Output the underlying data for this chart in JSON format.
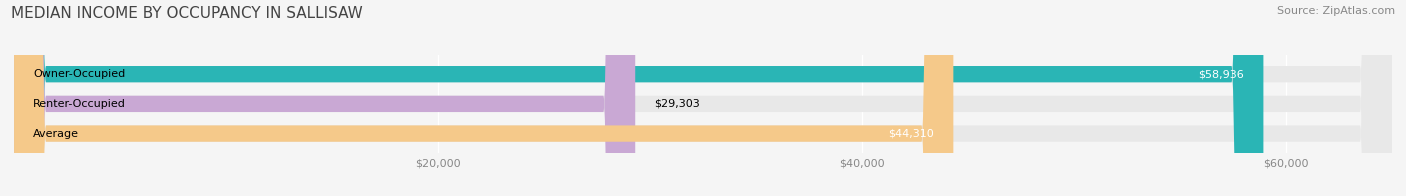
{
  "title": "MEDIAN INCOME BY OCCUPANCY IN SALLISAW",
  "source": "Source: ZipAtlas.com",
  "categories": [
    "Owner-Occupied",
    "Renter-Occupied",
    "Average"
  ],
  "values": [
    58936,
    29303,
    44310
  ],
  "value_labels": [
    "$58,936",
    "$29,303",
    "$44,310"
  ],
  "bar_colors": [
    "#2ab5b5",
    "#c9a8d4",
    "#f5c98a"
  ],
  "background_color": "#f5f5f5",
  "bar_bg_color": "#e8e8e8",
  "xlim": [
    0,
    65000
  ],
  "xticks": [
    20000,
    40000,
    60000
  ],
  "xtick_labels": [
    "$20,000",
    "$40,000",
    "$60,000"
  ],
  "title_fontsize": 11,
  "source_fontsize": 8,
  "label_fontsize": 8,
  "value_fontsize": 8,
  "bar_height": 0.55,
  "figsize": [
    14.06,
    1.96
  ],
  "dpi": 100
}
